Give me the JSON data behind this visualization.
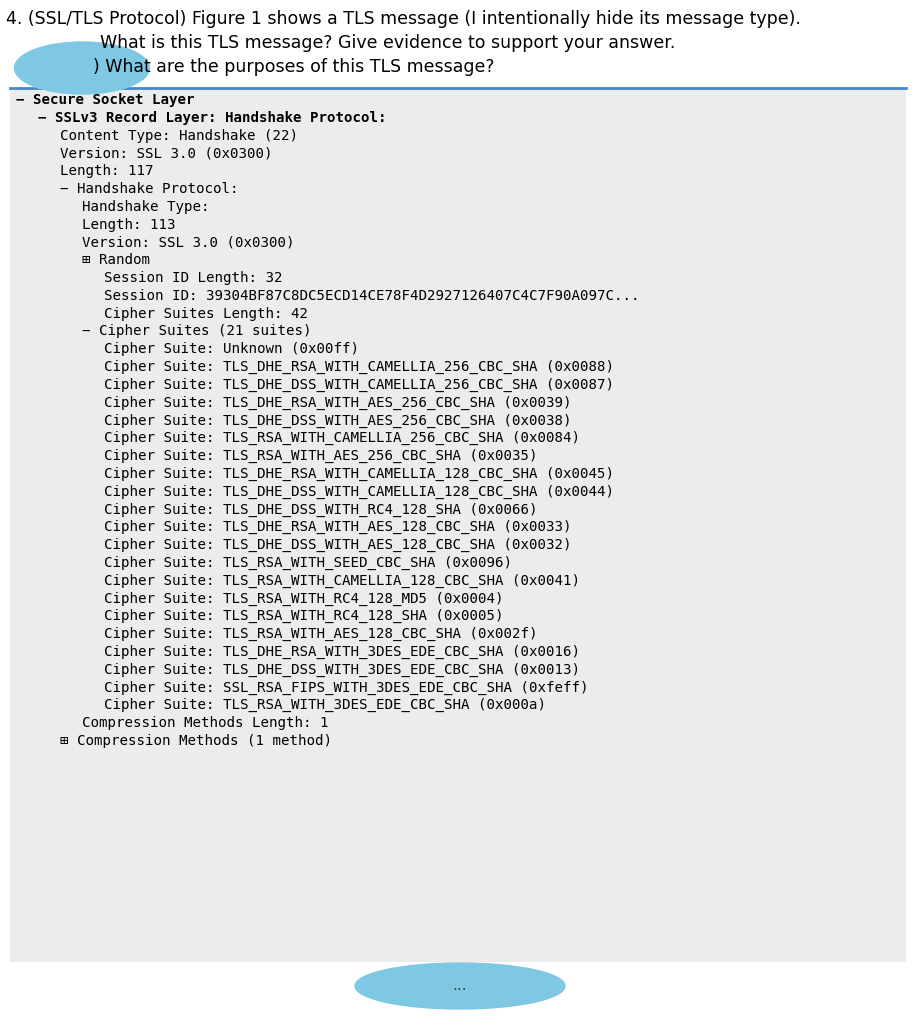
{
  "title_line1": "4. (SSL/TLS Protocol) Figure 1 shows a TLS message (I intentionally hide its message type).",
  "title_line2": "What is this TLS message? Give evidence to support your answer.",
  "title_line3": ") What are the purposes of this TLS message?",
  "bg_color": "#ffffff",
  "panel_bg": "#ececec",
  "blue_blob_color": "#7ec8e3",
  "mono_font": "DejaVu Sans Mono",
  "normal_font": "DejaVu Sans",
  "title_fontsize": 12.5,
  "mono_fontsize": 10.2,
  "panel_border_color": "#4a86c8",
  "tree_lines": [
    {
      "indent": 0,
      "text": "− Secure Socket Layer",
      "bold": true
    },
    {
      "indent": 1,
      "text": "− SSLv3 Record Layer: Handshake Protocol:",
      "bold": true
    },
    {
      "indent": 2,
      "text": "Content Type: Handshake (22)",
      "bold": false
    },
    {
      "indent": 2,
      "text": "Version: SSL 3.0 (0x0300)",
      "bold": false
    },
    {
      "indent": 2,
      "text": "Length: 117",
      "bold": false
    },
    {
      "indent": 2,
      "text": "− Handshake Protocol:",
      "bold": false
    },
    {
      "indent": 3,
      "text": "Handshake Type:",
      "bold": false
    },
    {
      "indent": 3,
      "text": "Length: 113",
      "bold": false
    },
    {
      "indent": 3,
      "text": "Version: SSL 3.0 (0x0300)",
      "bold": false
    },
    {
      "indent": 3,
      "text": "⊞ Random",
      "bold": false
    },
    {
      "indent": 4,
      "text": "Session ID Length: 32",
      "bold": false
    },
    {
      "indent": 4,
      "text": "Session ID: 39304BF87C8DC5ECD14CE78F4D2927126407C4C7F90A097C...",
      "bold": false
    },
    {
      "indent": 4,
      "text": "Cipher Suites Length: 42",
      "bold": false
    },
    {
      "indent": 3,
      "text": "− Cipher Suites (21 suites)",
      "bold": false
    },
    {
      "indent": 4,
      "text": "Cipher Suite: Unknown (0x00ff)",
      "bold": false
    },
    {
      "indent": 4,
      "text": "Cipher Suite: TLS_DHE_RSA_WITH_CAMELLIA_256_CBC_SHA (0x0088)",
      "bold": false
    },
    {
      "indent": 4,
      "text": "Cipher Suite: TLS_DHE_DSS_WITH_CAMELLIA_256_CBC_SHA (0x0087)",
      "bold": false
    },
    {
      "indent": 4,
      "text": "Cipher Suite: TLS_DHE_RSA_WITH_AES_256_CBC_SHA (0x0039)",
      "bold": false
    },
    {
      "indent": 4,
      "text": "Cipher Suite: TLS_DHE_DSS_WITH_AES_256_CBC_SHA (0x0038)",
      "bold": false
    },
    {
      "indent": 4,
      "text": "Cipher Suite: TLS_RSA_WITH_CAMELLIA_256_CBC_SHA (0x0084)",
      "bold": false
    },
    {
      "indent": 4,
      "text": "Cipher Suite: TLS_RSA_WITH_AES_256_CBC_SHA (0x0035)",
      "bold": false
    },
    {
      "indent": 4,
      "text": "Cipher Suite: TLS_DHE_RSA_WITH_CAMELLIA_128_CBC_SHA (0x0045)",
      "bold": false
    },
    {
      "indent": 4,
      "text": "Cipher Suite: TLS_DHE_DSS_WITH_CAMELLIA_128_CBC_SHA (0x0044)",
      "bold": false
    },
    {
      "indent": 4,
      "text": "Cipher Suite: TLS_DHE_DSS_WITH_RC4_128_SHA (0x0066)",
      "bold": false
    },
    {
      "indent": 4,
      "text": "Cipher Suite: TLS_DHE_RSA_WITH_AES_128_CBC_SHA (0x0033)",
      "bold": false
    },
    {
      "indent": 4,
      "text": "Cipher Suite: TLS_DHE_DSS_WITH_AES_128_CBC_SHA (0x0032)",
      "bold": false
    },
    {
      "indent": 4,
      "text": "Cipher Suite: TLS_RSA_WITH_SEED_CBC_SHA (0x0096)",
      "bold": false
    },
    {
      "indent": 4,
      "text": "Cipher Suite: TLS_RSA_WITH_CAMELLIA_128_CBC_SHA (0x0041)",
      "bold": false
    },
    {
      "indent": 4,
      "text": "Cipher Suite: TLS_RSA_WITH_RC4_128_MD5 (0x0004)",
      "bold": false
    },
    {
      "indent": 4,
      "text": "Cipher Suite: TLS_RSA_WITH_RC4_128_SHA (0x0005)",
      "bold": false
    },
    {
      "indent": 4,
      "text": "Cipher Suite: TLS_RSA_WITH_AES_128_CBC_SHA (0x002f)",
      "bold": false
    },
    {
      "indent": 4,
      "text": "Cipher Suite: TLS_DHE_RSA_WITH_3DES_EDE_CBC_SHA (0x0016)",
      "bold": false
    },
    {
      "indent": 4,
      "text": "Cipher Suite: TLS_DHE_DSS_WITH_3DES_EDE_CBC_SHA (0x0013)",
      "bold": false
    },
    {
      "indent": 4,
      "text": "Cipher Suite: SSL_RSA_FIPS_WITH_3DES_EDE_CBC_SHA (0xfeff)",
      "bold": false
    },
    {
      "indent": 4,
      "text": "Cipher Suite: TLS_RSA_WITH_3DES_EDE_CBC_SHA (0x000a)",
      "bold": false
    },
    {
      "indent": 3,
      "text": "Compression Methods Length: 1",
      "bold": false
    },
    {
      "indent": 2,
      "text": "⊞ Compression Methods (1 method)",
      "bold": false
    }
  ]
}
